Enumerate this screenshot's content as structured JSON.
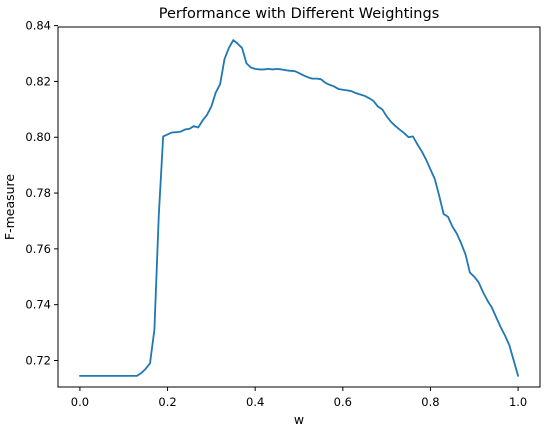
{
  "chart_data": {
    "type": "line",
    "title": "Performance with Different Weightings",
    "xlabel": "w",
    "ylabel": "F-measure",
    "xlim": [
      -0.05,
      1.05
    ],
    "ylim": [
      0.7105,
      0.8395
    ],
    "xticks": [
      0.0,
      0.2,
      0.4,
      0.6,
      0.8,
      1.0
    ],
    "xtick_labels": [
      "0.0",
      "0.2",
      "0.4",
      "0.6",
      "0.8",
      "1.0"
    ],
    "yticks": [
      0.72,
      0.74,
      0.76,
      0.78,
      0.8,
      0.82,
      0.84
    ],
    "ytick_labels": [
      "0.72",
      "0.74",
      "0.76",
      "0.78",
      "0.80",
      "0.82",
      "0.84"
    ],
    "grid": false,
    "legend": "none",
    "series": [
      {
        "color": "#1f77b4",
        "x": [
          0.0,
          0.01,
          0.02,
          0.03,
          0.04,
          0.05,
          0.06,
          0.07,
          0.08,
          0.09,
          0.1,
          0.11,
          0.12,
          0.13,
          0.14,
          0.15,
          0.16,
          0.17,
          0.18,
          0.19,
          0.2,
          0.21,
          0.22,
          0.23,
          0.24,
          0.25,
          0.26,
          0.27,
          0.28,
          0.29,
          0.3,
          0.31,
          0.32,
          0.33,
          0.34,
          0.35,
          0.36,
          0.37,
          0.38,
          0.39,
          0.4,
          0.41,
          0.42,
          0.43,
          0.44,
          0.45,
          0.46,
          0.47,
          0.48,
          0.49,
          0.5,
          0.51,
          0.52,
          0.53,
          0.54,
          0.55,
          0.56,
          0.57,
          0.58,
          0.59,
          0.6,
          0.61,
          0.62,
          0.63,
          0.64,
          0.65,
          0.66,
          0.67,
          0.68,
          0.69,
          0.7,
          0.71,
          0.72,
          0.73,
          0.74,
          0.75,
          0.76,
          0.77,
          0.78,
          0.79,
          0.8,
          0.81,
          0.82,
          0.83,
          0.84,
          0.85,
          0.86,
          0.87,
          0.88,
          0.89,
          0.9,
          0.91,
          0.92,
          0.93,
          0.94,
          0.95,
          0.96,
          0.97,
          0.98,
          0.99,
          1.0
        ],
        "y": [
          0.7145,
          0.7145,
          0.7145,
          0.7145,
          0.7145,
          0.7145,
          0.7145,
          0.7145,
          0.7145,
          0.7145,
          0.7145,
          0.7145,
          0.7145,
          0.7145,
          0.7155,
          0.717,
          0.719,
          0.731,
          0.772,
          0.8003,
          0.801,
          0.8017,
          0.8018,
          0.802,
          0.8028,
          0.803,
          0.804,
          0.8035,
          0.806,
          0.808,
          0.811,
          0.816,
          0.819,
          0.828,
          0.832,
          0.8348,
          0.8335,
          0.832,
          0.8265,
          0.825,
          0.8245,
          0.8243,
          0.8243,
          0.8245,
          0.8243,
          0.8245,
          0.8243,
          0.824,
          0.8238,
          0.8237,
          0.823,
          0.8222,
          0.8215,
          0.821,
          0.821,
          0.8208,
          0.8195,
          0.8188,
          0.8182,
          0.8173,
          0.817,
          0.8168,
          0.8165,
          0.8158,
          0.8153,
          0.8148,
          0.814,
          0.813,
          0.811,
          0.81,
          0.8075,
          0.8055,
          0.804,
          0.8027,
          0.8015,
          0.8,
          0.8003,
          0.7975,
          0.795,
          0.792,
          0.7885,
          0.785,
          0.779,
          0.7725,
          0.7715,
          0.768,
          0.7655,
          0.762,
          0.758,
          0.7515,
          0.75,
          0.748,
          0.7445,
          0.7415,
          0.739,
          0.7355,
          0.732,
          0.729,
          0.7255,
          0.72,
          0.7145
        ]
      }
    ]
  }
}
